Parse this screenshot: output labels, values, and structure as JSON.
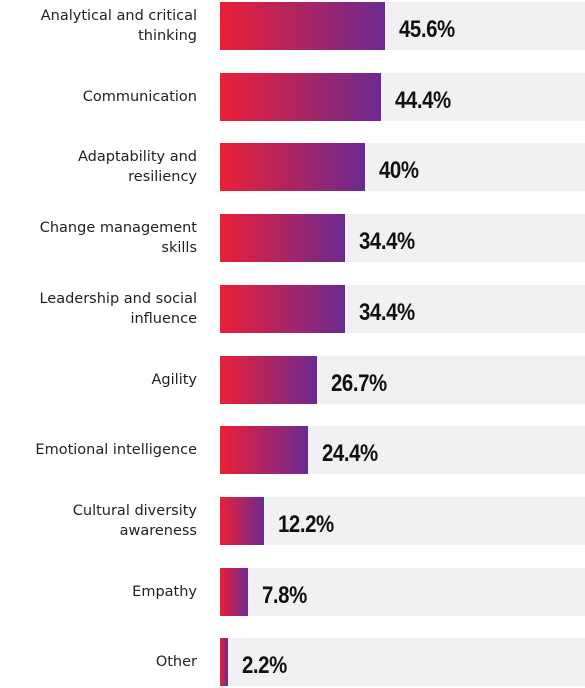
{
  "chart_data": {
    "type": "bar",
    "orientation": "horizontal",
    "categories": [
      "Analytical and critical thinking",
      "Communication",
      "Adaptability and resiliency",
      "Change management skills",
      "Leadership and social influence",
      "Agility",
      "Emotional intelligence",
      "Cultural diversity awareness",
      "Empathy",
      "Other"
    ],
    "values": [
      45.6,
      44.4,
      40,
      34.4,
      34.4,
      26.7,
      24.4,
      12.2,
      7.8,
      2.2
    ],
    "value_labels": [
      "45.6%",
      "44.4%",
      "40%",
      "34.4%",
      "34.4%",
      "26.7%",
      "24.4%",
      "12.2%",
      "7.8%",
      "2.2%"
    ],
    "color": [
      "#ec1f36",
      "#6b2a90"
    ],
    "track_color": "#f1f1f4",
    "xlim": [
      0,
      100
    ]
  }
}
